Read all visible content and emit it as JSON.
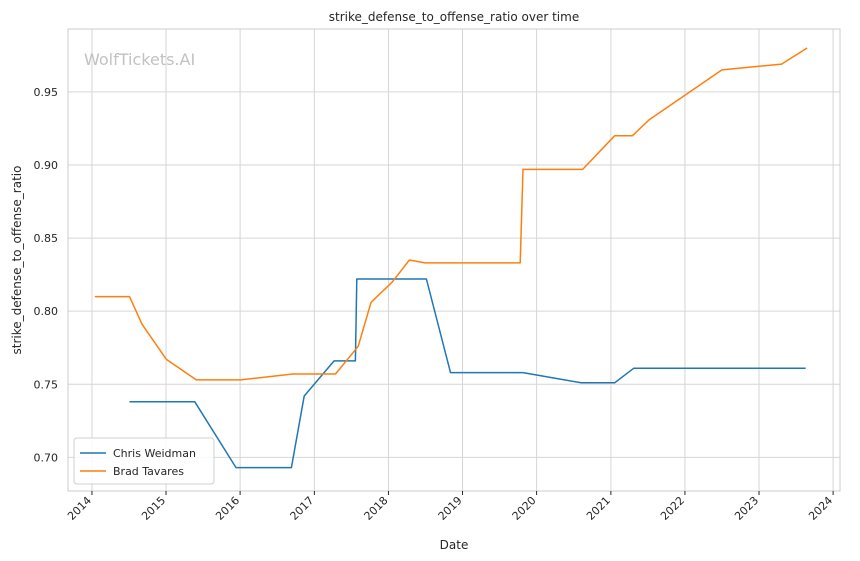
{
  "chart_data": {
    "type": "line",
    "title": "strike_defense_to_offense_ratio over time",
    "xlabel": "Date",
    "ylabel": "strike_defense_to_offense_ratio",
    "watermark": "WolfTickets.AI",
    "x_axis": {
      "type": "date",
      "range": [
        "2013-09-05",
        "2024-02-04"
      ],
      "ticks": [
        "2014",
        "2015",
        "2016",
        "2017",
        "2018",
        "2019",
        "2020",
        "2021",
        "2022",
        "2023",
        "2024"
      ]
    },
    "y_axis": {
      "range": [
        0.677,
        0.993
      ],
      "ticks": [
        0.7,
        0.75,
        0.8,
        0.85,
        0.9,
        0.95
      ],
      "tick_labels": [
        "0.70",
        "0.75",
        "0.80",
        "0.85",
        "0.90",
        "0.95"
      ]
    },
    "grid": true,
    "legend_position": "lower-left",
    "series": [
      {
        "name": "Chris Weidman",
        "color": "#1f77b4",
        "points": [
          [
            "2014-07-05",
            0.738
          ],
          [
            "2015-05-23",
            0.738
          ],
          [
            "2015-12-12",
            0.693
          ],
          [
            "2016-09-10",
            0.693
          ],
          [
            "2016-11-12",
            0.742
          ],
          [
            "2017-04-08",
            0.766
          ],
          [
            "2017-07-22",
            0.766
          ],
          [
            "2017-07-29",
            0.822
          ],
          [
            "2018-07-07",
            0.822
          ],
          [
            "2018-11-03",
            0.758
          ],
          [
            "2019-10-26",
            0.758
          ],
          [
            "2020-08-08",
            0.751
          ],
          [
            "2021-01-20",
            0.751
          ],
          [
            "2021-04-24",
            0.761
          ],
          [
            "2023-04-29",
            0.761
          ],
          [
            "2023-08-19",
            0.761
          ]
        ]
      },
      {
        "name": "Brad Tavares",
        "color": "#ff7f0e",
        "points": [
          [
            "2014-01-15",
            0.81
          ],
          [
            "2014-07-05",
            0.81
          ],
          [
            "2014-09-05",
            0.791
          ],
          [
            "2015-01-03",
            0.767
          ],
          [
            "2015-05-30",
            0.753
          ],
          [
            "2016-01-02",
            0.753
          ],
          [
            "2016-09-17",
            0.757
          ],
          [
            "2017-04-15",
            0.757
          ],
          [
            "2017-08-05",
            0.776
          ],
          [
            "2017-10-07",
            0.806
          ],
          [
            "2018-01-20",
            0.82
          ],
          [
            "2018-04-14",
            0.835
          ],
          [
            "2018-06-30",
            0.833
          ],
          [
            "2019-10-12",
            0.833
          ],
          [
            "2019-10-26",
            0.897
          ],
          [
            "2020-08-15",
            0.897
          ],
          [
            "2021-01-20",
            0.92
          ],
          [
            "2021-04-17",
            0.92
          ],
          [
            "2021-07-10",
            0.931
          ],
          [
            "2022-07-02",
            0.965
          ],
          [
            "2023-04-22",
            0.969
          ],
          [
            "2023-08-26",
            0.98
          ]
        ]
      }
    ]
  }
}
